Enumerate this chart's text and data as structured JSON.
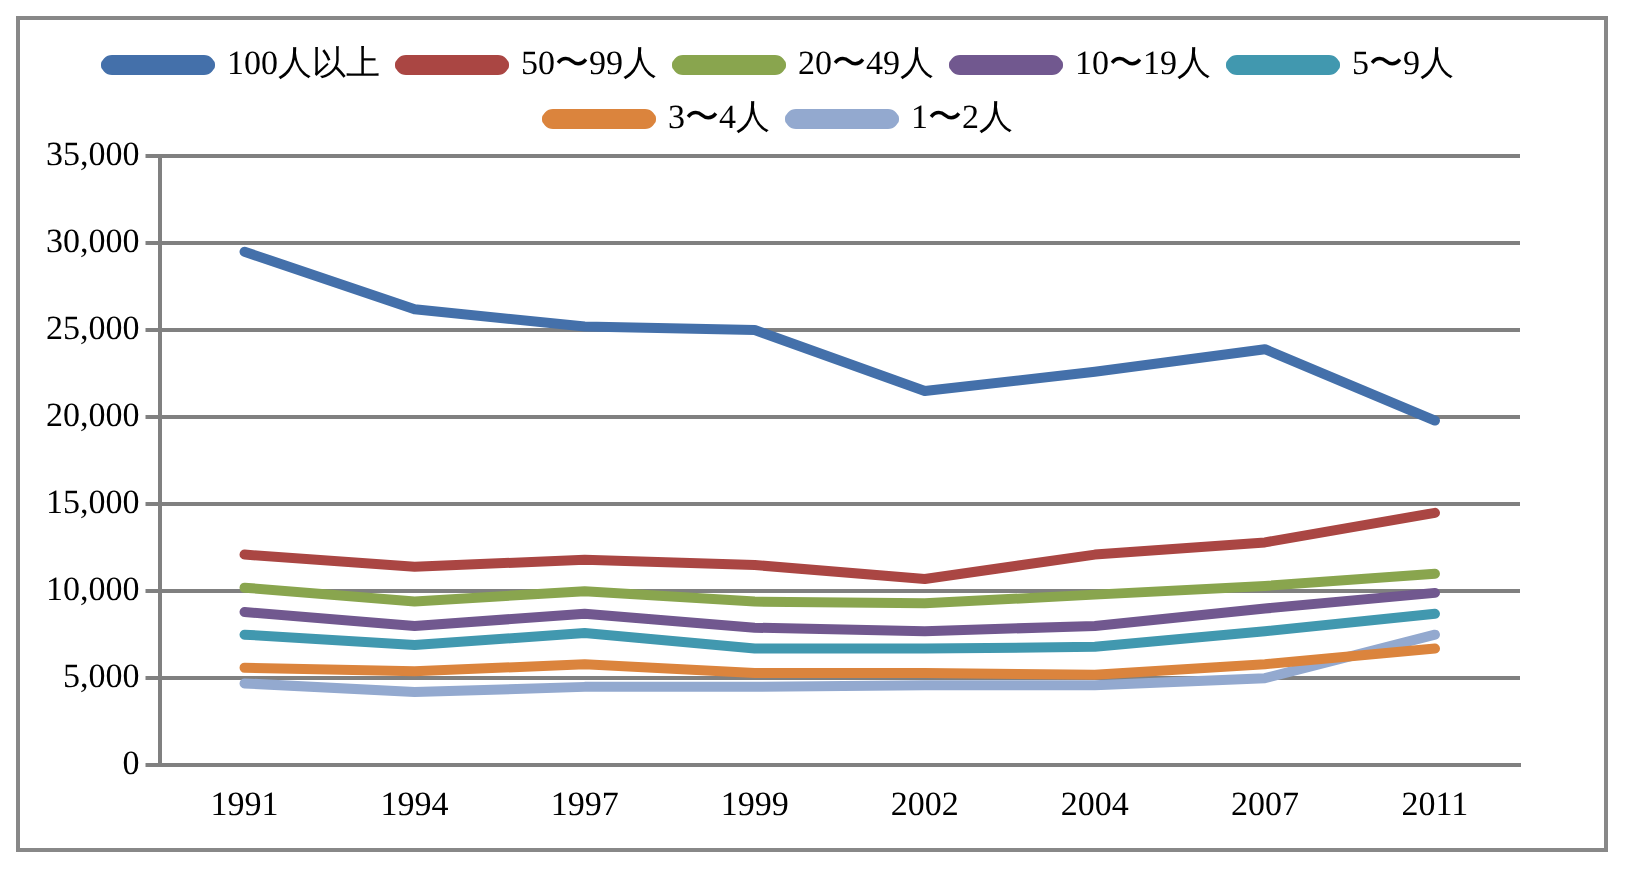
{
  "chart_data": {
    "type": "line",
    "categories": [
      "1991",
      "1994",
      "1997",
      "1999",
      "2002",
      "2004",
      "2007",
      "2011"
    ],
    "series": [
      {
        "name": "100人以上",
        "color": "#4470aa",
        "values": [
          29500,
          26200,
          25200,
          25000,
          21500,
          22600,
          23900,
          19800
        ]
      },
      {
        "name": "50〜99人",
        "color": "#aa4643",
        "values": [
          12100,
          11400,
          11800,
          11500,
          10700,
          12100,
          12800,
          14500
        ]
      },
      {
        "name": "20〜49人",
        "color": "#89a54e",
        "values": [
          10200,
          9400,
          10000,
          9400,
          9300,
          9800,
          10300,
          11000
        ]
      },
      {
        "name": "10〜19人",
        "color": "#71588f",
        "values": [
          8800,
          8000,
          8700,
          7900,
          7700,
          8000,
          9000,
          9900
        ]
      },
      {
        "name": "5〜9人",
        "color": "#4198af",
        "values": [
          7500,
          6900,
          7600,
          6700,
          6700,
          6800,
          7700,
          8700
        ]
      },
      {
        "name": "3〜4人",
        "color": "#db843d",
        "values": [
          5600,
          5400,
          5800,
          5300,
          5300,
          5200,
          5800,
          6700
        ]
      },
      {
        "name": "1〜2人",
        "color": "#93a9cf",
        "values": [
          4700,
          4200,
          4500,
          4500,
          4600,
          4600,
          5000,
          7500
        ]
      }
    ],
    "ylim": [
      0,
      35000
    ],
    "yticks": [
      {
        "value": 0,
        "label": "0"
      },
      {
        "value": 5000,
        "label": "5,000"
      },
      {
        "value": 10000,
        "label": "10,000"
      },
      {
        "value": 15000,
        "label": "15,000"
      },
      {
        "value": 20000,
        "label": "20,000"
      },
      {
        "value": 25000,
        "label": "25,000"
      },
      {
        "value": 30000,
        "label": "30,000"
      },
      {
        "value": 35000,
        "label": "35,000"
      }
    ],
    "grid": "y",
    "legend": "top",
    "marker": "none",
    "line_style": "solid"
  }
}
